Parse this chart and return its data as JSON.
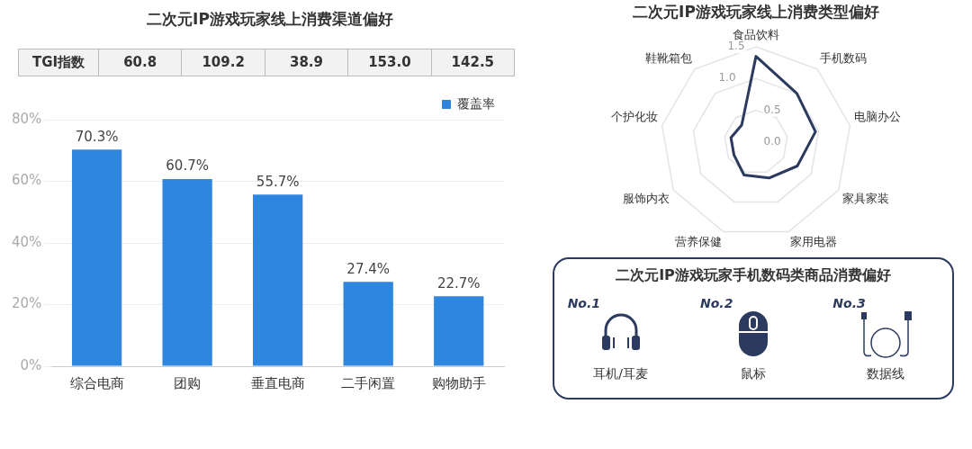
{
  "chart_data": [
    {
      "type": "bar",
      "title": "二次元IP游戏玩家线上消费渠道偏好",
      "categories": [
        "综合电商",
        "团购",
        "垂直电商",
        "二手闲置",
        "购物助手"
      ],
      "series": [
        {
          "name": "覆盖率",
          "color": "#2e86de",
          "values": [
            70.3,
            60.7,
            55.7,
            27.4,
            22.7
          ]
        }
      ],
      "value_labels": [
        "70.3%",
        "60.7%",
        "55.7%",
        "27.4%",
        "22.7%"
      ],
      "ylim": [
        0,
        80
      ],
      "yticks": [
        {
          "value": 0,
          "label": "0%"
        },
        {
          "value": 20,
          "label": "20%"
        },
        {
          "value": 40,
          "label": "40%"
        },
        {
          "value": 60,
          "label": "60%"
        },
        {
          "value": 80,
          "label": "80%"
        }
      ],
      "grid": "y",
      "legend": "top right",
      "annotations": [
        "TGI指数",
        "60.8",
        "109.2",
        "38.9",
        "153.0",
        "142.5"
      ]
    },
    {
      "type": "radar",
      "title": "二次元IP游戏玩家线上消费类型偏好",
      "categories": [
        "食品饮料",
        "手机数码",
        "电脑办公",
        "家具家装",
        "家用电器",
        "营养保健",
        "服饰内衣",
        "个护化妆",
        "鞋靴箱包"
      ],
      "series": [
        {
          "color": "#2b3a5e",
          "values": [
            1.35,
            1.0,
            0.95,
            0.75,
            0.6,
            0.55,
            0.4,
            0.4,
            0.35
          ]
        }
      ],
      "ylim": [
        0,
        1.5
      ],
      "yticks": [
        {
          "value": 0,
          "label": "0.0"
        },
        {
          "value": 0.5,
          "label": "0.5"
        },
        {
          "value": 1,
          "label": "1.0"
        },
        {
          "value": 1.5,
          "label": "1.5"
        }
      ],
      "grid": true,
      "marker": "none",
      "legend": false
    },
    {
      "type": "other",
      "title": "二次元IP游戏玩家手机数码类商品消费偏好",
      "annotations": [
        "No.1",
        "耳机/耳麦",
        "No.2",
        "鼠标",
        "No.3",
        "数据线"
      ]
    }
  ]
}
